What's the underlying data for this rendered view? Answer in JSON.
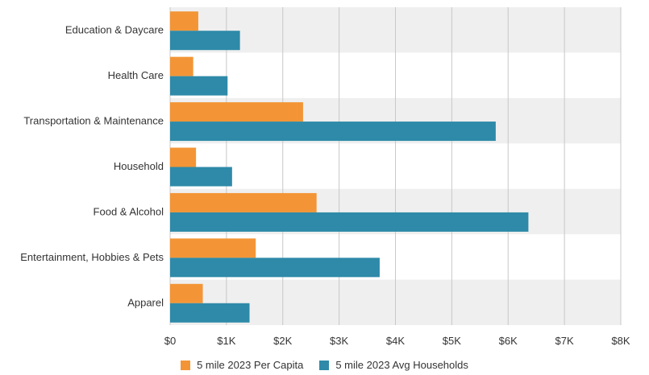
{
  "chart_data": {
    "type": "bar",
    "orientation": "horizontal",
    "categories": [
      "Education & Daycare",
      "Health Care",
      "Transportation & Maintenance",
      "Household",
      "Food & Alcohol",
      "Entertainment, Hobbies & Pets",
      "Apparel"
    ],
    "series": [
      {
        "name": "5 mile 2023 Per Capita",
        "color": "#f39536",
        "values": [
          500,
          410,
          2360,
          460,
          2600,
          1520,
          580
        ]
      },
      {
        "name": "5 mile 2023 Avg Households",
        "color": "#2e8aa8",
        "values": [
          1240,
          1020,
          5780,
          1100,
          6360,
          3720,
          1410
        ]
      }
    ],
    "xlim": [
      0,
      8000
    ],
    "x_ticks": [
      "$0",
      "$1K",
      "$2K",
      "$3K",
      "$4K",
      "$5K",
      "$6K",
      "$7K",
      "$8K"
    ],
    "grid": true,
    "band_color": "#efefef",
    "legend_position": "bottom"
  }
}
